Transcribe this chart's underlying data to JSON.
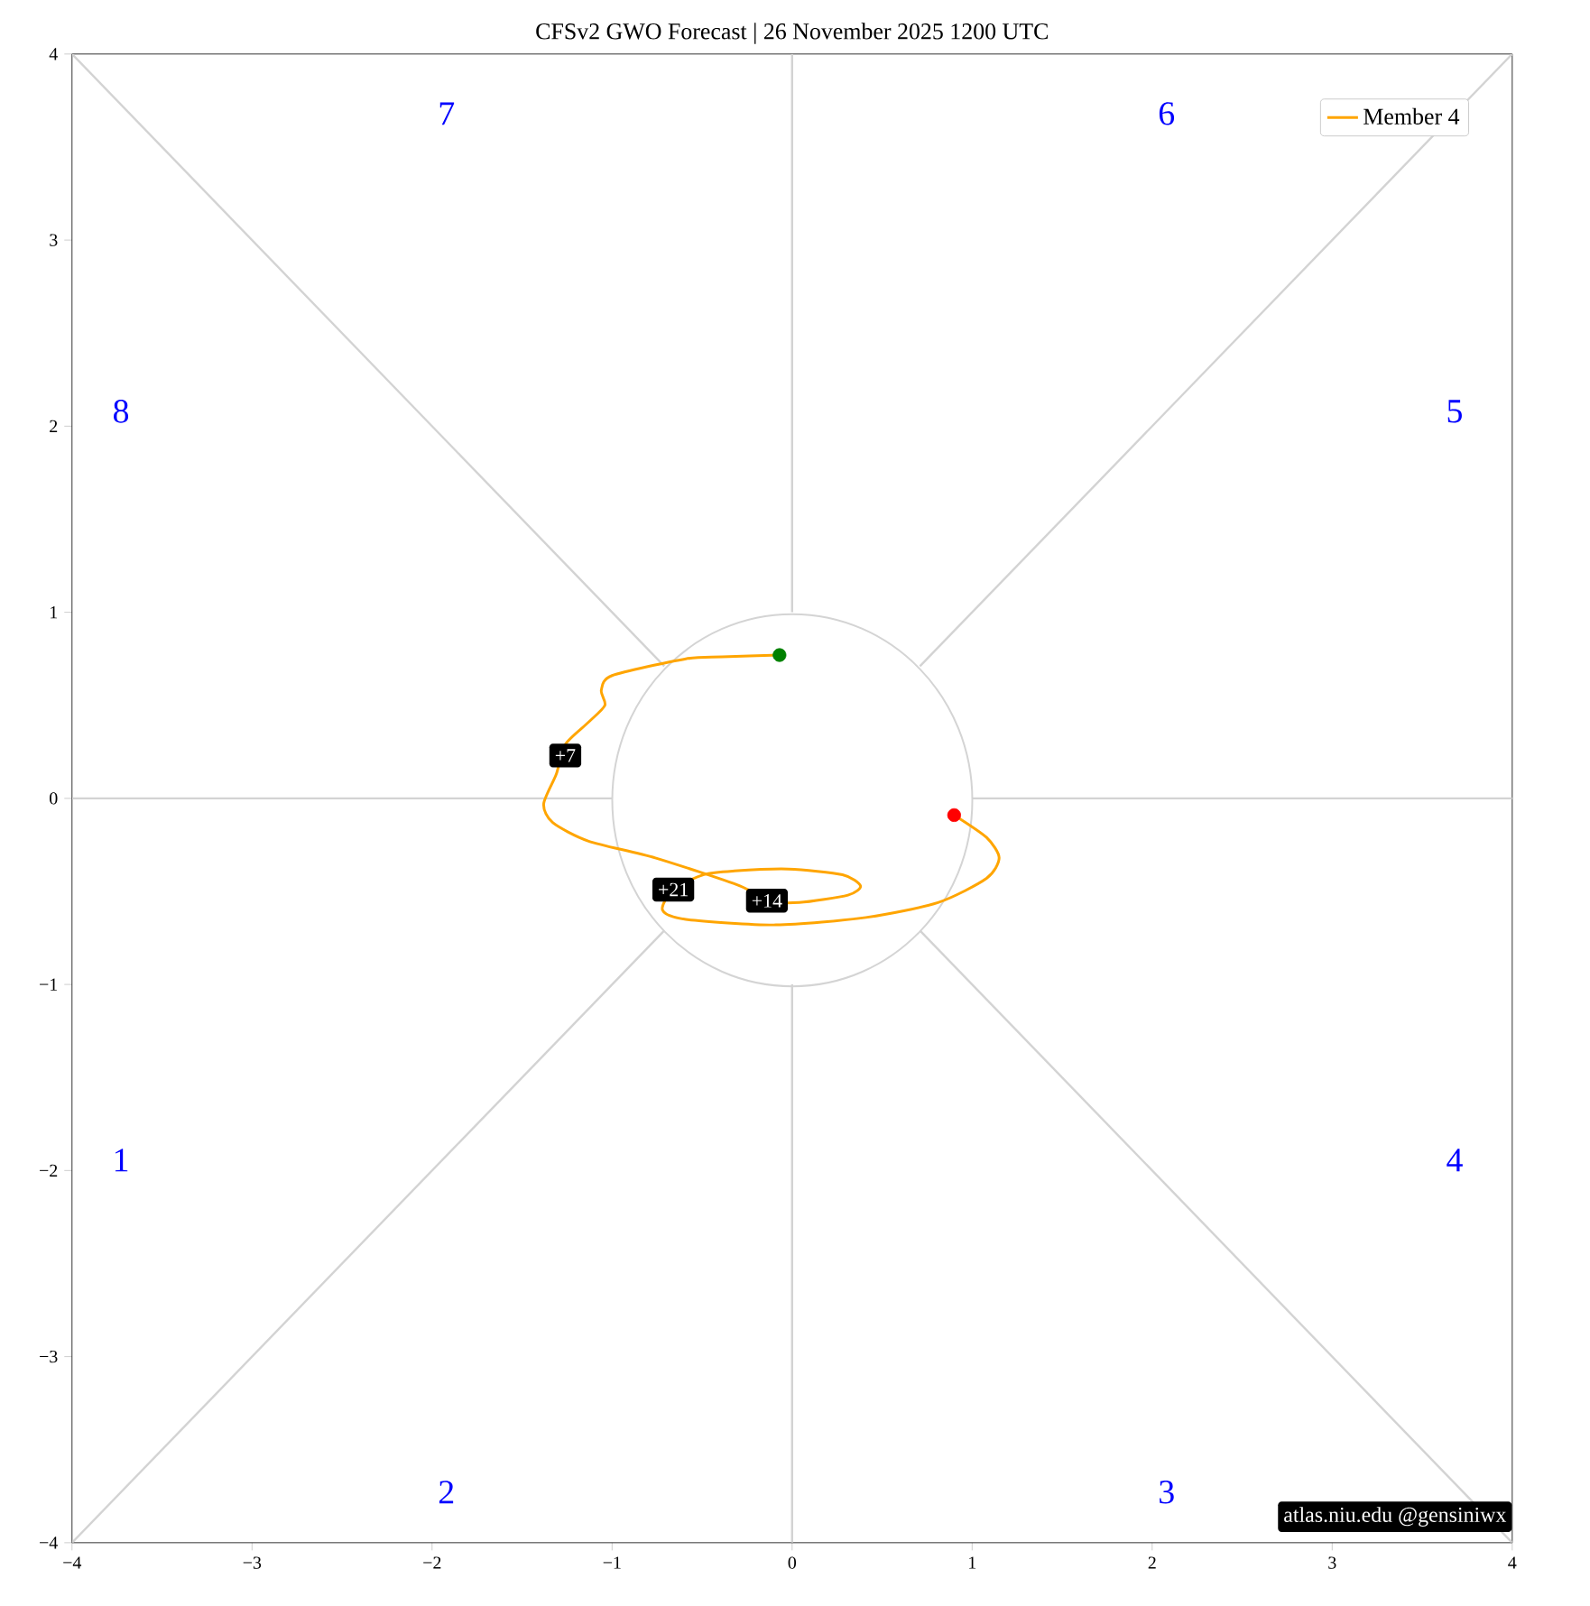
{
  "chart_data": {
    "type": "line",
    "title": "CFSv2 GWO Forecast  |  26 November 2025 1200 UTC",
    "series": [
      {
        "color": "#d3d3d3",
        "x": [
          -4,
          -1
        ],
        "values": [
          0,
          0
        ]
      },
      {
        "color": "#d3d3d3",
        "x": [
          -4,
          -0.71
        ],
        "values": [
          4,
          0.71
        ]
      },
      {
        "color": "#d3d3d3",
        "x": [
          0,
          0
        ],
        "values": [
          4,
          1
        ]
      },
      {
        "color": "#d3d3d3",
        "x": [
          4,
          0.71
        ],
        "values": [
          4,
          0.71
        ]
      },
      {
        "color": "#d3d3d3",
        "x": [
          4,
          1
        ],
        "values": [
          0,
          0
        ]
      },
      {
        "color": "#d3d3d3",
        "x": [
          4,
          0.71
        ],
        "values": [
          -4,
          -0.71
        ]
      },
      {
        "color": "#d3d3d3",
        "x": [
          0,
          0
        ],
        "values": [
          -4,
          -1
        ]
      },
      {
        "color": "#d3d3d3",
        "x": [
          -4,
          -0.71
        ],
        "values": [
          -4,
          -0.71
        ]
      },
      {
        "name": "Member 4",
        "color": "#ffa500",
        "x": [
          -0.07,
          -0.39,
          -0.59,
          -1.0,
          -1.06,
          -1.04,
          -1.13,
          -1.26,
          -1.31,
          -1.38,
          -1.33,
          -1.13,
          -0.76,
          -0.29,
          -0.14,
          0.04,
          0.31,
          0.38,
          0.28,
          -0.02,
          -0.32,
          -0.49,
          -0.66,
          -0.72,
          -0.59,
          -0.09,
          0.41,
          0.81,
          1.08,
          1.15,
          1.08,
          0.9
        ],
        "values": [
          0.77,
          0.76,
          0.75,
          0.66,
          0.58,
          0.5,
          0.41,
          0.29,
          0.13,
          -0.03,
          -0.13,
          -0.23,
          -0.32,
          -0.47,
          -0.55,
          -0.56,
          -0.52,
          -0.47,
          -0.41,
          -0.38,
          -0.39,
          -0.41,
          -0.49,
          -0.6,
          -0.65,
          -0.68,
          -0.64,
          -0.56,
          -0.43,
          -0.32,
          -0.21,
          -0.09
        ]
      },
      {
        "type": "scatter",
        "marker": "circle",
        "color": "#008000",
        "x": [
          -0.07
        ],
        "values": [
          0.77
        ]
      },
      {
        "type": "scatter",
        "marker": "circle",
        "color": "#ff0000",
        "x": [
          0.9
        ],
        "values": [
          -0.09
        ]
      }
    ],
    "xlim": [
      -4,
      4
    ],
    "ylim": [
      -4,
      4
    ],
    "xticks": [
      {
        "value": -4,
        "label": "−4"
      },
      {
        "value": -3,
        "label": "−3"
      },
      {
        "value": -2,
        "label": "−2"
      },
      {
        "value": -1,
        "label": "−1"
      },
      0,
      1,
      2,
      3,
      4
    ],
    "yticks": [
      {
        "value": -4,
        "label": "−4"
      },
      {
        "value": -3,
        "label": "−3"
      },
      {
        "value": -2,
        "label": "−2"
      },
      {
        "value": -1,
        "label": "−1"
      },
      0,
      1,
      2,
      3,
      4
    ],
    "legend": "top right",
    "annotations": [
      "1",
      "2",
      "3",
      "4",
      "5",
      "6",
      "7",
      "8",
      {
        "text": "+7",
        "x": -1.26,
        "y": 0.23
      },
      {
        "text": "+14",
        "x": -0.14,
        "y": -0.55
      },
      {
        "text": "+21",
        "x": -0.66,
        "y": -0.49
      },
      "atlas.niu.edu  @gensiniwx"
    ]
  }
}
